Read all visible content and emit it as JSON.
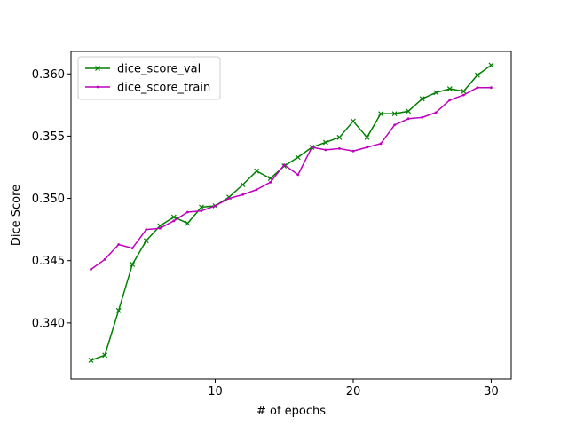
{
  "chart_data": {
    "type": "line",
    "xlabel": "# of epochs",
    "ylabel": "Dice Score",
    "xlim": [
      -0.45,
      31.45
    ],
    "ylim": [
      0.3355,
      0.3618
    ],
    "xticks": [
      10,
      20,
      30
    ],
    "xtick_labels": [
      "10",
      "20",
      "30"
    ],
    "yticks": [
      0.34,
      0.345,
      0.35,
      0.355,
      0.36
    ],
    "ytick_labels": [
      "0.340",
      "0.345",
      "0.350",
      "0.355",
      "0.360"
    ],
    "grid": false,
    "legend_position": "top-left",
    "x": [
      1,
      2,
      3,
      4,
      5,
      6,
      7,
      8,
      9,
      10,
      11,
      12,
      13,
      14,
      15,
      16,
      17,
      18,
      19,
      20,
      21,
      22,
      23,
      24,
      25,
      26,
      27,
      28,
      29,
      30
    ],
    "series": [
      {
        "name": "dice_score_val",
        "color": "#008000",
        "marker": "x",
        "values": [
          0.337,
          0.3374,
          0.341,
          0.3447,
          0.3466,
          0.3478,
          0.3485,
          0.348,
          0.3493,
          0.3494,
          0.3501,
          0.3511,
          0.3522,
          0.3516,
          0.3526,
          0.3533,
          0.3541,
          0.3545,
          0.3549,
          0.3562,
          0.3549,
          0.3568,
          0.3568,
          0.357,
          0.358,
          0.3585,
          0.3588,
          0.3586,
          0.3599,
          0.3607
        ]
      },
      {
        "name": "dice_score_train",
        "color": "#bf00bf",
        "marker": ".",
        "values": [
          0.3443,
          0.3451,
          0.3463,
          0.346,
          0.3475,
          0.3476,
          0.3482,
          0.3489,
          0.349,
          0.3494,
          0.35,
          0.3503,
          0.3507,
          0.3513,
          0.3527,
          0.3519,
          0.3541,
          0.3539,
          0.354,
          0.3538,
          0.3541,
          0.3544,
          0.3559,
          0.3564,
          0.3565,
          0.3569,
          0.3579,
          0.3583,
          0.3589,
          0.3589
        ]
      }
    ]
  }
}
